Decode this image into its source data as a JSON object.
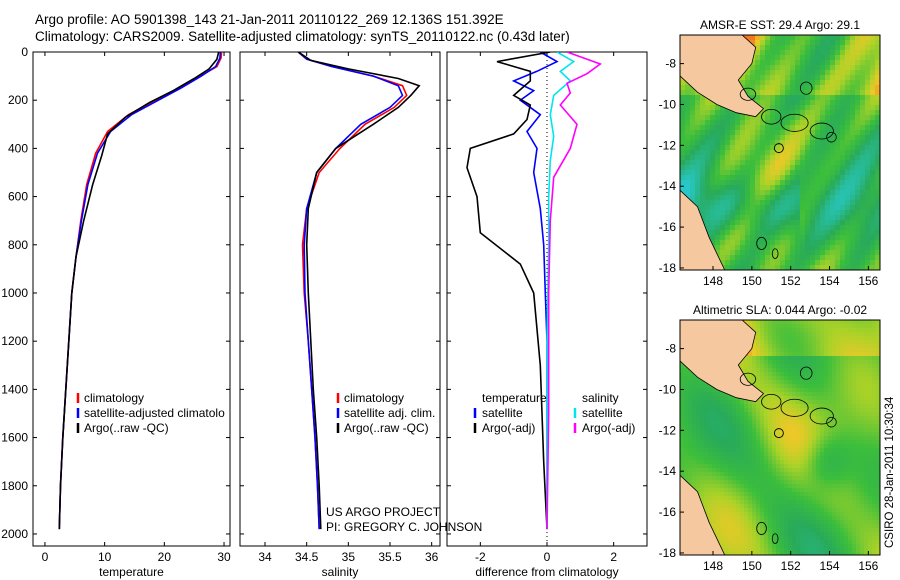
{
  "title": {
    "line1": "Argo profile: AO 5901398_143 21-Jan-2011 20110122_269 12.136S 151.392E",
    "line2": "Climatology: CARS2009. Satellite-adjusted climatology: synTS_20110122.nc (0.43d later)"
  },
  "colors": {
    "climatology": "#ff0000",
    "satellite": "#0000ff",
    "argo": "#000000",
    "sat_sal": "#00e5ee",
    "argo_sal": "#ff00ff",
    "land": "#f5c8a0",
    "coast": "#000000"
  },
  "chart_data": [
    {
      "id": "temperature",
      "type": "line",
      "xlabel": "temperature",
      "ylabel": "",
      "xlim": [
        -2,
        31
      ],
      "ylim": [
        0,
        2050
      ],
      "y_inverted": true,
      "xticks": [
        0,
        10,
        20,
        30
      ],
      "yticks": [
        0,
        200,
        400,
        600,
        800,
        1000,
        1200,
        1400,
        1600,
        1800,
        2000
      ],
      "legend": [
        "climatology",
        "satellite-adjusted climatolo",
        "Argo(..raw -QC)"
      ],
      "series": [
        {
          "name": "climatology",
          "color": "climatology",
          "x": [
            29.6,
            29.5,
            28.8,
            26.0,
            22.5,
            18.5,
            14.0,
            10.5,
            8.5,
            7.0,
            6.0,
            5.2,
            4.5,
            4.0,
            3.5,
            3.0,
            2.6,
            2.4
          ],
          "y": [
            0,
            25,
            60,
            100,
            150,
            200,
            260,
            330,
            420,
            550,
            700,
            850,
            1000,
            1200,
            1400,
            1600,
            1800,
            1980
          ]
        },
        {
          "name": "satellite",
          "color": "satellite",
          "x": [
            29.4,
            29.3,
            28.6,
            26.2,
            22.8,
            19.0,
            14.5,
            11.0,
            8.8,
            7.2,
            6.1,
            5.2,
            4.5,
            4.0,
            3.5,
            3.0,
            2.6,
            2.4
          ],
          "y": [
            0,
            25,
            60,
            100,
            150,
            200,
            260,
            330,
            420,
            550,
            700,
            850,
            1000,
            1200,
            1400,
            1600,
            1800,
            1980
          ]
        },
        {
          "name": "Argo",
          "color": "argo",
          "x": [
            29.1,
            28.8,
            27.5,
            25.0,
            21.5,
            17.5,
            13.5,
            10.5,
            9.5,
            8.0,
            6.5,
            5.2,
            4.5,
            4.0,
            3.5,
            3.0,
            2.6,
            2.4
          ],
          "y": [
            0,
            30,
            70,
            110,
            160,
            210,
            270,
            340,
            430,
            550,
            700,
            850,
            1000,
            1200,
            1400,
            1600,
            1800,
            1980
          ]
        }
      ]
    },
    {
      "id": "salinity",
      "type": "line",
      "xlabel": "salinity",
      "xlim": [
        33.7,
        36.1
      ],
      "ylim": [
        0,
        2050
      ],
      "y_inverted": true,
      "xticks": [
        34,
        34.5,
        35,
        35.5,
        36
      ],
      "legend": [
        "climatology",
        "satellite adj. clim.",
        "Argo(..raw -QC)"
      ],
      "series": [
        {
          "name": "climatology",
          "color": "climatology",
          "x": [
            34.4,
            34.5,
            34.8,
            35.3,
            35.65,
            35.7,
            35.55,
            35.2,
            34.9,
            34.65,
            34.5,
            34.45,
            34.47,
            34.52,
            34.56,
            34.6,
            34.63,
            34.65
          ],
          "y": [
            0,
            30,
            60,
            100,
            140,
            180,
            230,
            300,
            400,
            500,
            650,
            800,
            1000,
            1200,
            1400,
            1600,
            1800,
            1980
          ]
        },
        {
          "name": "satellite",
          "color": "satellite",
          "x": [
            34.4,
            34.5,
            34.8,
            35.3,
            35.6,
            35.65,
            35.5,
            35.15,
            34.85,
            34.62,
            34.5,
            34.47,
            34.48,
            34.52,
            34.56,
            34.6,
            34.63,
            34.65
          ],
          "y": [
            0,
            30,
            60,
            100,
            140,
            180,
            230,
            300,
            400,
            500,
            650,
            800,
            1000,
            1200,
            1400,
            1600,
            1800,
            1980
          ]
        },
        {
          "name": "Argo",
          "color": "argo",
          "x": [
            34.4,
            34.55,
            35.0,
            35.6,
            35.85,
            35.75,
            35.6,
            35.3,
            34.85,
            34.62,
            34.52,
            34.5,
            34.52,
            34.55,
            34.58,
            34.62,
            34.65,
            34.67
          ],
          "y": [
            0,
            35,
            70,
            110,
            140,
            180,
            230,
            300,
            400,
            500,
            650,
            800,
            1000,
            1200,
            1400,
            1600,
            1800,
            1980
          ]
        }
      ],
      "annotation": [
        "US ARGO PROJECT",
        "PI: GREGORY C. JOHNSON"
      ]
    },
    {
      "id": "difference",
      "type": "line",
      "xlabel": "difference from climatology",
      "xlim": [
        -3,
        3
      ],
      "ylim": [
        0,
        2050
      ],
      "y_inverted": true,
      "xticks": [
        -2,
        0,
        2
      ],
      "legend_temp": {
        "header": "temperature",
        "items": [
          "satellite",
          "Argo(-adj)"
        ]
      },
      "legend_sal": {
        "header": "salinity",
        "items": [
          "satellite",
          "Argo(-adj)"
        ]
      },
      "series": [
        {
          "name": "temp satellite",
          "color": "satellite",
          "x": [
            -0.2,
            0.3,
            -0.3,
            -1.0,
            -0.4,
            -0.8,
            -0.2,
            -0.6,
            -0.3,
            -0.4,
            -0.2,
            -0.1,
            -0.05,
            0.0,
            0.0,
            0.0,
            0.0
          ],
          "y": [
            0,
            40,
            80,
            120,
            160,
            200,
            260,
            330,
            400,
            500,
            650,
            800,
            1000,
            1200,
            1500,
            1800,
            1980
          ]
        },
        {
          "name": "temp Argo",
          "color": "argo",
          "x": [
            0.1,
            -1.5,
            -0.5,
            -0.5,
            -1.0,
            -0.5,
            -0.6,
            -1.0,
            -2.3,
            -2.4,
            -2.1,
            -2.0,
            -0.8,
            -0.4,
            -0.2,
            -0.1,
            0.0
          ],
          "y": [
            0,
            40,
            80,
            120,
            180,
            220,
            280,
            340,
            400,
            480,
            600,
            750,
            880,
            1000,
            1300,
            1700,
            1980
          ]
        },
        {
          "name": "sal satellite",
          "color": "sat_sal",
          "x": [
            0.3,
            0.8,
            0.4,
            0.7,
            0.2,
            0.1,
            0.2,
            0.1,
            0.05,
            0.05,
            0.0,
            0.0,
            0.0
          ],
          "y": [
            0,
            40,
            80,
            120,
            180,
            260,
            350,
            450,
            600,
            800,
            1200,
            1600,
            1980
          ]
        },
        {
          "name": "sal Argo",
          "color": "argo_sal",
          "x": [
            0.6,
            1.6,
            1.2,
            0.6,
            0.7,
            0.4,
            0.9,
            0.7,
            0.2,
            0.1,
            0.05,
            0.05,
            0.0
          ],
          "y": [
            0,
            50,
            90,
            130,
            170,
            220,
            300,
            400,
            520,
            700,
            1000,
            1500,
            1980
          ]
        }
      ]
    },
    {
      "id": "amsre_map",
      "type": "heatmap",
      "title": "AMSR-E SST: 29.4 Argo: 29.1",
      "xticks": [
        148,
        150,
        152,
        154,
        156
      ],
      "yticks": [
        -8,
        -10,
        -12,
        -14,
        -16,
        -18
      ],
      "xlim": [
        146.3,
        156.6
      ],
      "ylim": [
        -18.1,
        -6.6
      ],
      "marker": {
        "lon": 151.392,
        "lat": -12.136
      }
    },
    {
      "id": "sla_map",
      "type": "heatmap",
      "title": "Altimetric SLA: 0.044 Argo: -0.02",
      "xticks": [
        148,
        150,
        152,
        154,
        156
      ],
      "yticks": [
        -8,
        -10,
        -12,
        -14,
        -16,
        -18
      ],
      "xlim": [
        146.3,
        156.6
      ],
      "ylim": [
        -18.1,
        -6.6
      ],
      "marker": {
        "lon": 151.392,
        "lat": -12.136
      }
    }
  ],
  "footer_note": "CSIRO 28-Jan-2011 10:30:34"
}
